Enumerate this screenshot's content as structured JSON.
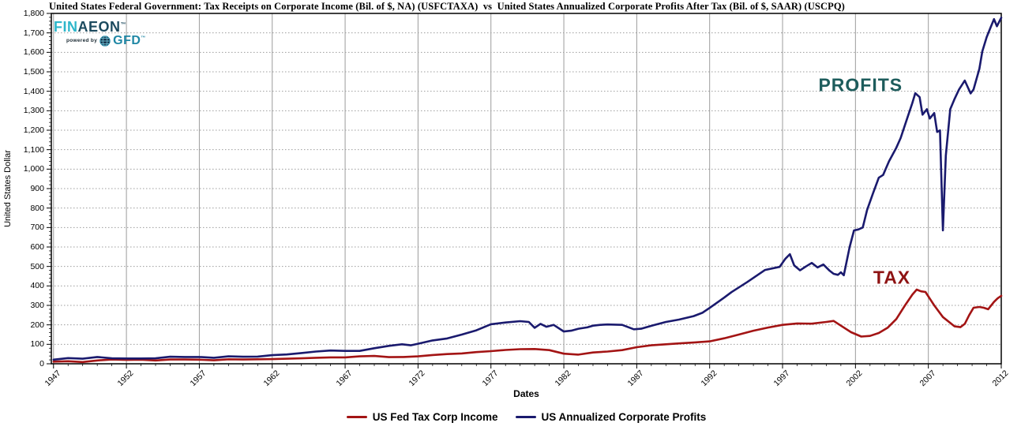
{
  "chart_data": {
    "type": "line",
    "title": "United States Federal Government: Tax Receipts on Corporate Income (Bil. of $, NA) (USFCTAXA)  vs  United States Annualized Corporate Profits After Tax (Bil. of $, SAAR) (USCPQ)",
    "xlabel": "Dates",
    "ylabel": "United States Dollar",
    "xlim": [
      1946.85,
      2012.0
    ],
    "ylim": [
      0,
      1800
    ],
    "y_tick_step": 100,
    "y_tick_labels": [
      "0",
      "100",
      "200",
      "300",
      "400",
      "500",
      "600",
      "700",
      "800",
      "900",
      "1,000",
      "1,100",
      "1,200",
      "1,300",
      "1,400",
      "1,500",
      "1,600",
      "1,700",
      "1,800"
    ],
    "x_tick_years": [
      1947,
      1952,
      1957,
      1962,
      1967,
      1972,
      1977,
      1982,
      1987,
      1992,
      1997,
      2002,
      2007,
      2012
    ],
    "x_tick_labels": [
      "1947",
      "1952",
      "1957",
      "1962",
      "1967",
      "1972",
      "1977",
      "1982",
      "1987",
      "1992",
      "1997",
      "2002",
      "2007",
      "2012"
    ],
    "grid": {
      "horizontal": "dotted",
      "vertical": "solid",
      "color": "#9c9c9c"
    },
    "legend_position": "bottom-center",
    "annotations": [
      {
        "text": "PROFITS",
        "x": 2002.35,
        "y": 1430,
        "color": "#1d5c5c"
      },
      {
        "text": "TAX",
        "x": 2004.5,
        "y": 440,
        "color": "#8e1313"
      }
    ],
    "series": [
      {
        "name": "US Fed Tax Corp Income",
        "color": "#a31414",
        "points": [
          [
            1947,
            11
          ],
          [
            1948,
            13
          ],
          [
            1949,
            9
          ],
          [
            1950,
            17
          ],
          [
            1951,
            22
          ],
          [
            1952,
            20
          ],
          [
            1953,
            21
          ],
          [
            1954,
            17
          ],
          [
            1955,
            22
          ],
          [
            1956,
            22
          ],
          [
            1957,
            21
          ],
          [
            1958,
            18
          ],
          [
            1959,
            23
          ],
          [
            1960,
            22
          ],
          [
            1961,
            23
          ],
          [
            1962,
            24
          ],
          [
            1963,
            26
          ],
          [
            1964,
            28
          ],
          [
            1965,
            31
          ],
          [
            1966,
            33
          ],
          [
            1967,
            33
          ],
          [
            1968,
            38
          ],
          [
            1969,
            40
          ],
          [
            1970,
            34
          ],
          [
            1971,
            35
          ],
          [
            1972,
            38
          ],
          [
            1973,
            45
          ],
          [
            1974,
            50
          ],
          [
            1975,
            53
          ],
          [
            1976,
            60
          ],
          [
            1977,
            65
          ],
          [
            1978,
            71
          ],
          [
            1979,
            75
          ],
          [
            1980,
            76
          ],
          [
            1981,
            70
          ],
          [
            1982,
            52
          ],
          [
            1983,
            47
          ],
          [
            1984,
            58
          ],
          [
            1985,
            63
          ],
          [
            1986,
            70
          ],
          [
            1987,
            85
          ],
          [
            1988,
            95
          ],
          [
            1989,
            100
          ],
          [
            1990,
            105
          ],
          [
            1991,
            110
          ],
          [
            1992,
            115
          ],
          [
            1993,
            131
          ],
          [
            1994,
            150
          ],
          [
            1995,
            170
          ],
          [
            1996,
            186
          ],
          [
            1997,
            200
          ],
          [
            1998,
            207
          ],
          [
            1999,
            206
          ],
          [
            2000,
            215
          ],
          [
            2000.5,
            220
          ],
          [
            2001,
            196
          ],
          [
            2001.7,
            162
          ],
          [
            2002.4,
            140
          ],
          [
            2003,
            143
          ],
          [
            2003.6,
            158
          ],
          [
            2004.2,
            185
          ],
          [
            2004.8,
            230
          ],
          [
            2005.4,
            300
          ],
          [
            2005.9,
            355
          ],
          [
            2006.2,
            381
          ],
          [
            2006.5,
            372
          ],
          [
            2006.8,
            369
          ],
          [
            2007.4,
            300
          ],
          [
            2008,
            240
          ],
          [
            2008.8,
            192
          ],
          [
            2009.2,
            188
          ],
          [
            2009.5,
            205
          ],
          [
            2009.8,
            250
          ],
          [
            2010.1,
            288
          ],
          [
            2010.5,
            292
          ],
          [
            2010.8,
            288
          ],
          [
            2011.1,
            280
          ],
          [
            2011.5,
            318
          ],
          [
            2011.75,
            336
          ],
          [
            2012,
            349
          ]
        ]
      },
      {
        "name": "US Annualized Corporate Profits",
        "color": "#1a1a6e",
        "points": [
          [
            1947,
            21
          ],
          [
            1948,
            29
          ],
          [
            1949,
            26
          ],
          [
            1950,
            35
          ],
          [
            1951,
            28
          ],
          [
            1952,
            27
          ],
          [
            1953,
            27
          ],
          [
            1954,
            28
          ],
          [
            1955,
            36
          ],
          [
            1956,
            35
          ],
          [
            1957,
            35
          ],
          [
            1958,
            31
          ],
          [
            1959,
            38
          ],
          [
            1960,
            36
          ],
          [
            1961,
            37
          ],
          [
            1962,
            44
          ],
          [
            1963,
            48
          ],
          [
            1964,
            55
          ],
          [
            1965,
            63
          ],
          [
            1966,
            68
          ],
          [
            1967,
            66
          ],
          [
            1968,
            66
          ],
          [
            1969,
            80
          ],
          [
            1970,
            92
          ],
          [
            1970.9,
            100
          ],
          [
            1971.5,
            95
          ],
          [
            1972,
            103
          ],
          [
            1973,
            120
          ],
          [
            1974,
            130
          ],
          [
            1975,
            150
          ],
          [
            1976,
            172
          ],
          [
            1977,
            203
          ],
          [
            1978,
            212
          ],
          [
            1979,
            219
          ],
          [
            1979.6,
            215
          ],
          [
            1980,
            185
          ],
          [
            1980.4,
            205
          ],
          [
            1980.8,
            190
          ],
          [
            1981.3,
            200
          ],
          [
            1982,
            166
          ],
          [
            1982.5,
            170
          ],
          [
            1983,
            180
          ],
          [
            1983.6,
            187
          ],
          [
            1984,
            196
          ],
          [
            1984.5,
            200
          ],
          [
            1985,
            202
          ],
          [
            1986,
            200
          ],
          [
            1986.8,
            177
          ],
          [
            1987.3,
            180
          ],
          [
            1988.1,
            197
          ],
          [
            1989,
            215
          ],
          [
            1989.9,
            227
          ],
          [
            1990.9,
            245
          ],
          [
            1991.5,
            262
          ],
          [
            1992,
            287
          ],
          [
            1993,
            340
          ],
          [
            1993.5,
            368
          ],
          [
            1994.6,
            421
          ],
          [
            1995.8,
            482
          ],
          [
            1996.8,
            498
          ],
          [
            1997.2,
            540
          ],
          [
            1997.5,
            563
          ],
          [
            1997.8,
            505
          ],
          [
            1998.2,
            480
          ],
          [
            1998.6,
            500
          ],
          [
            1999,
            518
          ],
          [
            1999.4,
            495
          ],
          [
            1999.8,
            510
          ],
          [
            2000.2,
            480
          ],
          [
            2000.5,
            462
          ],
          [
            2000.8,
            457
          ],
          [
            2001,
            470
          ],
          [
            2001.2,
            455
          ],
          [
            2001.6,
            600
          ],
          [
            2001.9,
            685
          ],
          [
            2002.2,
            690
          ],
          [
            2002.5,
            700
          ],
          [
            2002.8,
            790
          ],
          [
            2003.2,
            875
          ],
          [
            2003.6,
            956
          ],
          [
            2003.9,
            970
          ],
          [
            2004.3,
            1040
          ],
          [
            2004.8,
            1110
          ],
          [
            2005.1,
            1160
          ],
          [
            2005.6,
            1272
          ],
          [
            2005.9,
            1340
          ],
          [
            2006.1,
            1390
          ],
          [
            2006.4,
            1370
          ],
          [
            2006.6,
            1280
          ],
          [
            2006.9,
            1308
          ],
          [
            2007.1,
            1260
          ],
          [
            2007.4,
            1288
          ],
          [
            2007.6,
            1191
          ],
          [
            2007.8,
            1199
          ],
          [
            2008,
            685
          ],
          [
            2008.2,
            1070
          ],
          [
            2008.5,
            1308
          ],
          [
            2008.8,
            1361
          ],
          [
            2009.1,
            1409
          ],
          [
            2009.5,
            1455
          ],
          [
            2009.9,
            1389
          ],
          [
            2010.1,
            1409
          ],
          [
            2010.5,
            1516
          ],
          [
            2010.7,
            1605
          ],
          [
            2011,
            1678
          ],
          [
            2011.3,
            1734
          ],
          [
            2011.5,
            1771
          ],
          [
            2011.7,
            1734
          ],
          [
            2012,
            1778
          ]
        ]
      }
    ]
  },
  "logo": {
    "fin": "FIN",
    "aeon": "AEON",
    "tm": "™",
    "powered_by": "powered by",
    "gfd": "GFD",
    "globe_icon": "globe-icon"
  },
  "legend": {
    "items": [
      {
        "label": "US Fed Tax Corp Income",
        "color": "#a31414"
      },
      {
        "label": "US Annualized Corporate Profits",
        "color": "#1a1a6e"
      }
    ]
  }
}
